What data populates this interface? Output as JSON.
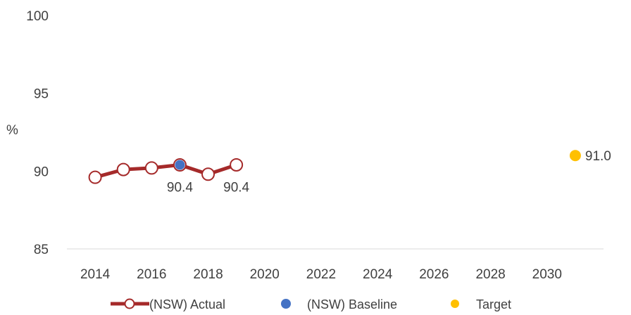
{
  "chart_data": {
    "type": "line",
    "title": "",
    "xlabel": "",
    "ylabel": "%",
    "xlim": [
      2013,
      2032
    ],
    "ylim": [
      85,
      100
    ],
    "y_ticks": [
      85,
      90,
      95,
      100
    ],
    "x_ticks": [
      2014,
      2016,
      2018,
      2020,
      2022,
      2024,
      2026,
      2028,
      2030
    ],
    "grid": false,
    "legend_position": "bottom",
    "series": [
      {
        "name": "(NSW) Actual",
        "color": "#a52a2a",
        "x": [
          2014,
          2015,
          2016,
          2017,
          2018,
          2019
        ],
        "y": [
          89.6,
          90.1,
          90.2,
          90.4,
          89.8,
          90.4
        ]
      },
      {
        "name": "(NSW) Baseline",
        "color": "#4472c4",
        "x": [
          2017
        ],
        "y": [
          90.4
        ]
      },
      {
        "name": "Target",
        "color": "#ffc000",
        "x": [
          2031
        ],
        "y": [
          91.0
        ]
      }
    ],
    "data_labels": [
      {
        "x": 2017,
        "y": 90.4,
        "text": "90.4"
      },
      {
        "x": 2019,
        "y": 90.4,
        "text": "90.4"
      },
      {
        "x": 2031,
        "y": 91.0,
        "text": "91.0"
      }
    ]
  }
}
